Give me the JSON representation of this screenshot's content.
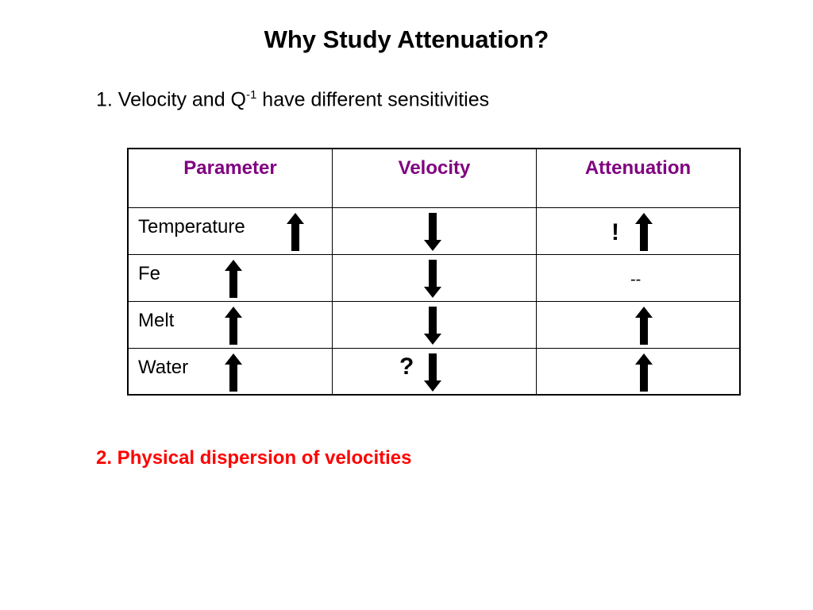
{
  "title": "Why Study Attenuation?",
  "point1": {
    "text_before": "1. Velocity and Q",
    "superscript": "-1",
    "text_after": " have different sensitivities"
  },
  "table": {
    "headers": [
      "Parameter",
      "Velocity",
      "Attenuation"
    ],
    "rows": [
      {
        "parameter": "Temperature",
        "parameter_arrow": "up-arrow-icon",
        "velocity_prefix": "",
        "velocity_arrow": "down-arrow-icon",
        "attenuation_prefix": "!",
        "attenuation_arrow": "up-arrow-icon"
      },
      {
        "parameter": "Fe",
        "parameter_arrow": "up-arrow-icon",
        "velocity_prefix": "",
        "velocity_arrow": "down-arrow-icon",
        "attenuation_text": "--"
      },
      {
        "parameter": "Melt",
        "parameter_arrow": "up-arrow-icon",
        "velocity_prefix": "",
        "velocity_arrow": "down-arrow-icon",
        "attenuation_arrow": "up-arrow-icon"
      },
      {
        "parameter": "Water",
        "parameter_arrow": "up-arrow-icon",
        "velocity_prefix": "?",
        "velocity_arrow": "down-arrow-icon",
        "attenuation_arrow": "up-arrow-icon"
      }
    ]
  },
  "point2": "2. Physical dispersion of velocities",
  "colors": {
    "header_text": "#800080",
    "point2_text": "#ff0000",
    "arrow": "#000000"
  }
}
